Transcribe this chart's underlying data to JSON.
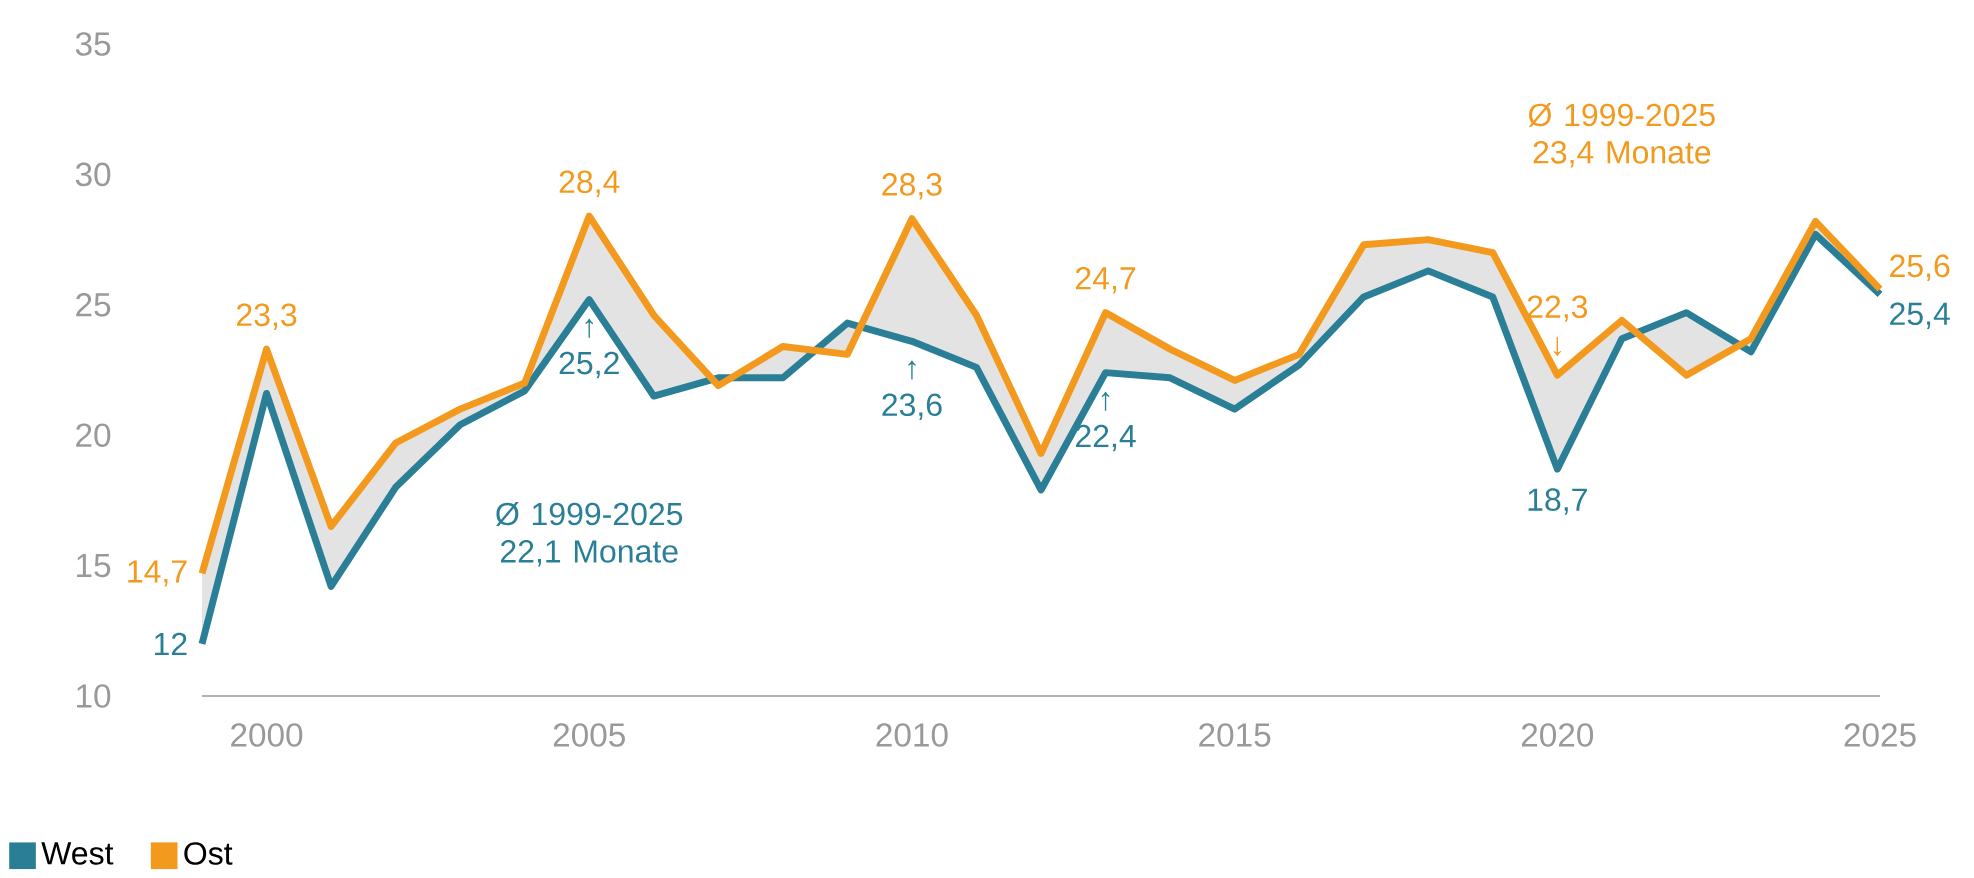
{
  "chart_data": {
    "type": "line",
    "x": [
      1999,
      2000,
      2001,
      2002,
      2003,
      2004,
      2005,
      2006,
      2007,
      2008,
      2009,
      2010,
      2011,
      2012,
      2013,
      2014,
      2015,
      2016,
      2017,
      2018,
      2019,
      2020,
      2021,
      2022,
      2023,
      2024,
      2025
    ],
    "series": [
      {
        "name": "West",
        "color": "#2a7f96",
        "values": [
          12,
          21.6,
          14.2,
          18.0,
          20.4,
          21.7,
          25.2,
          21.5,
          22.2,
          22.2,
          24.3,
          23.6,
          22.6,
          17.9,
          22.4,
          22.2,
          21.0,
          22.7,
          25.3,
          26.3,
          25.3,
          18.7,
          23.7,
          24.7,
          23.2,
          27.7,
          25.4
        ],
        "value_labels": [
          "12",
          null,
          null,
          null,
          null,
          null,
          "↑ 25,2",
          null,
          null,
          null,
          null,
          "↑ 23,6",
          null,
          null,
          "↑ 22,4",
          null,
          null,
          null,
          null,
          null,
          null,
          "18,7",
          null,
          null,
          null,
          null,
          "25,4"
        ]
      },
      {
        "name": "Ost",
        "color": "#f39a1e",
        "values": [
          14.7,
          23.3,
          16.5,
          19.7,
          21.0,
          22.0,
          28.4,
          24.6,
          21.9,
          23.4,
          23.1,
          28.3,
          24.6,
          19.3,
          24.7,
          23.3,
          22.1,
          23.1,
          27.3,
          27.5,
          27.0,
          22.3,
          24.4,
          22.3,
          23.7,
          28.2,
          25.6
        ],
        "lower": [
          12,
          21.6,
          14.2,
          18.0,
          20.4,
          21.7,
          25.2,
          21.5,
          22.2,
          22.2,
          24.3,
          23.6,
          22.6,
          17.9,
          22.4,
          22.2,
          21.0,
          22.7,
          25.3,
          26.3,
          25.3,
          18.7,
          23.7,
          24.7,
          23.2,
          27.7,
          25.4
        ],
        "upper": [
          14.7,
          23.3,
          16.5,
          19.7,
          21.0,
          22.0,
          28.4,
          24.6,
          21.9,
          23.4,
          23.1,
          28.3,
          24.6,
          19.3,
          24.7,
          23.3,
          22.1,
          23.1,
          27.3,
          27.5,
          27.0,
          22.3,
          24.4,
          22.3,
          23.7,
          28.2,
          25.6
        ],
        "value_labels": [
          "14,7",
          "23,3",
          null,
          null,
          null,
          null,
          "28,4",
          null,
          null,
          null,
          null,
          "28,3",
          null,
          null,
          "24,7",
          null,
          null,
          null,
          null,
          null,
          null,
          "22,3 ↓",
          null,
          null,
          null,
          null,
          "25,6"
        ]
      }
    ],
    "annotations": [
      "Ø 1999-2025 22,1 Monate",
      "Ø 1999-2025 23,4 Monate"
    ],
    "xlim": [
      1999,
      2025
    ],
    "ylim": [
      10,
      35
    ],
    "xticks": [
      2000,
      2005,
      2010,
      2015,
      2020,
      2025
    ],
    "yticks": [
      10,
      15,
      20,
      25,
      30,
      35
    ],
    "grid": false,
    "legend": "bottom left",
    "marker": "none",
    "line_style": "solid"
  }
}
